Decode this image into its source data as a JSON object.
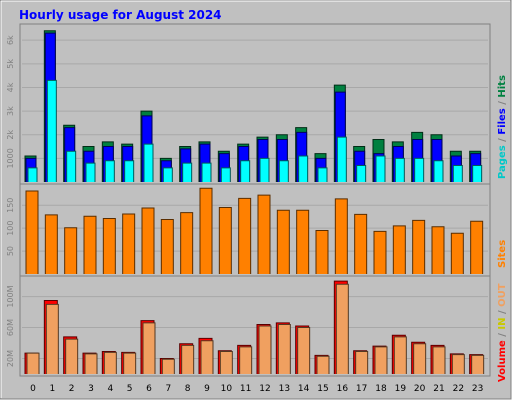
{
  "title": "Hourly usage for August 2024",
  "side_labels": {
    "top": [
      {
        "text": "Pages",
        "color": "#00c8c8"
      },
      {
        "text": " / ",
        "color": "#808080"
      },
      {
        "text": "Files",
        "color": "#0000ff"
      },
      {
        "text": " / ",
        "color": "#808080"
      },
      {
        "text": "Hits",
        "color": "#008040"
      }
    ],
    "middle": [
      {
        "text": "Sites",
        "color": "#ff8000"
      }
    ],
    "bottom": [
      {
        "text": "Volume",
        "color": "#ff0000"
      },
      {
        "text": "  /  ",
        "color": "#808080"
      },
      {
        "text": "IN",
        "color": "#c8c800"
      },
      {
        "text": " / ",
        "color": "#808080"
      },
      {
        "text": "OUT",
        "color": "#f0a060"
      }
    ]
  },
  "colors": {
    "frame_bg": "#c0c0c0",
    "plot_bg": "#c0c0c0",
    "hits": "#008040",
    "files": "#0000ff",
    "pages": "#00ffff",
    "sites": "#ff8000",
    "volume": "#ff0000",
    "volume_out": "#f0a060"
  },
  "chart_data": [
    {
      "type": "bar",
      "panel": "hits-files-pages",
      "categories": [
        "0",
        "1",
        "2",
        "3",
        "4",
        "5",
        "6",
        "7",
        "8",
        "9",
        "10",
        "11",
        "12",
        "13",
        "14",
        "15",
        "16",
        "17",
        "18",
        "19",
        "20",
        "21",
        "22",
        "23"
      ],
      "ticks": [
        {
          "label": "1000",
          "value": 1000
        },
        {
          "label": "2k",
          "value": 2000
        },
        {
          "label": "3k",
          "value": 3000
        },
        {
          "label": "4k",
          "value": 4000
        },
        {
          "label": "5k",
          "value": 5000
        },
        {
          "label": "6k",
          "value": 6000
        }
      ],
      "ylim": [
        0,
        6600
      ],
      "series": [
        {
          "name": "Hits",
          "values": [
            1100,
            6400,
            2400,
            1500,
            1700,
            1600,
            3000,
            1000,
            1500,
            1700,
            1300,
            1600,
            1900,
            2000,
            2300,
            1200,
            4100,
            1500,
            1800,
            1700,
            2100,
            2000,
            1300,
            1300
          ]
        },
        {
          "name": "Files",
          "values": [
            1000,
            6300,
            2300,
            1300,
            1500,
            1500,
            2800,
            900,
            1400,
            1600,
            1200,
            1500,
            1800,
            1800,
            2100,
            1000,
            3800,
            1300,
            1200,
            1500,
            1800,
            1800,
            1100,
            1200
          ]
        },
        {
          "name": "Pages",
          "values": [
            600,
            4300,
            1300,
            800,
            900,
            900,
            1600,
            600,
            800,
            800,
            600,
            900,
            1000,
            900,
            1100,
            600,
            1900,
            700,
            1100,
            1000,
            1000,
            900,
            700,
            700
          ]
        }
      ]
    },
    {
      "type": "bar",
      "panel": "sites",
      "categories": [
        "0",
        "1",
        "2",
        "3",
        "4",
        "5",
        "6",
        "7",
        "8",
        "9",
        "10",
        "11",
        "12",
        "13",
        "14",
        "15",
        "16",
        "17",
        "18",
        "19",
        "20",
        "21",
        "22",
        "23"
      ],
      "ticks": [
        {
          "label": "50",
          "value": 50
        },
        {
          "label": "100",
          "value": 100
        },
        {
          "label": "150",
          "value": 150
        }
      ],
      "ylim": [
        0,
        192
      ],
      "series": [
        {
          "name": "Sites",
          "values": [
            181,
            129,
            101,
            126,
            121,
            131,
            144,
            119,
            134,
            187,
            145,
            165,
            172,
            139,
            139,
            95,
            164,
            130,
            93,
            105,
            117,
            103,
            89,
            115
          ]
        }
      ]
    },
    {
      "type": "bar",
      "panel": "volume",
      "categories": [
        "0",
        "1",
        "2",
        "3",
        "4",
        "5",
        "6",
        "7",
        "8",
        "9",
        "10",
        "11",
        "12",
        "13",
        "14",
        "15",
        "16",
        "17",
        "18",
        "19",
        "20",
        "21",
        "22",
        "23"
      ],
      "ticks": [
        {
          "label": "20M",
          "value": 20
        },
        {
          "label": "60M",
          "value": 60
        },
        {
          "label": "100M",
          "value": 100
        }
      ],
      "ylim": [
        0,
        124
      ],
      "series": [
        {
          "name": "Volume",
          "values": [
            27,
            95,
            48,
            27,
            29,
            28,
            69,
            20,
            39,
            46,
            30,
            37,
            64,
            66,
            62,
            24,
            120,
            30,
            36,
            50,
            41,
            37,
            26,
            25
          ]
        },
        {
          "name": "OUT",
          "values": [
            27,
            90,
            45,
            26,
            28,
            27,
            66,
            19,
            37,
            43,
            29,
            35,
            62,
            64,
            60,
            23,
            116,
            29,
            35,
            48,
            39,
            35,
            25,
            24
          ]
        }
      ]
    }
  ]
}
